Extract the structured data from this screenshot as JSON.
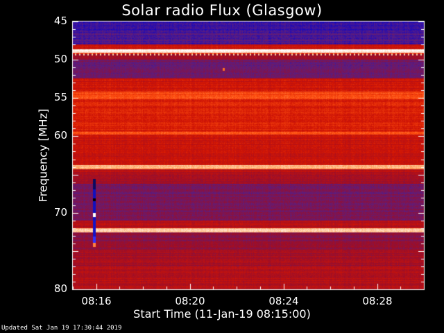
{
  "chart_data": {
    "type": "heatmap",
    "title": "Solar radio Flux (Glasgow)",
    "ylabel": "Frequency [MHz]",
    "xlabel": "Start Time (11-Jan-19 08:15:00)",
    "y_ticks": [
      "45",
      "50",
      "55",
      "60",
      "65",
      "70",
      "75",
      "80"
    ],
    "y_tick_labels": [
      "45",
      "50",
      "55",
      "60",
      "",
      "70",
      "",
      "80"
    ],
    "x_ticks": [
      "08:16",
      "08:20",
      "08:24",
      "08:28"
    ],
    "ylim": [
      45,
      80
    ],
    "xlim": [
      "08:15:00",
      "08:30:00"
    ],
    "colormap": [
      "#000000",
      "#0000d0",
      "#5a1e82",
      "#9a0e2a",
      "#d01404",
      "#ff5010",
      "#ffb070",
      "#ffffff"
    ],
    "bands": [
      {
        "f0": 45,
        "f1": 46.2,
        "level": 0.22
      },
      {
        "f0": 46.2,
        "f1": 48.0,
        "level": 0.26
      },
      {
        "f0": 48.0,
        "f1": 48.6,
        "level": 0.55
      },
      {
        "f0": 48.6,
        "f1": 49.1,
        "level": 0.97
      },
      {
        "f0": 49.1,
        "f1": 49.3,
        "level": 0.6
      },
      {
        "f0": 49.3,
        "f1": 50.0,
        "level": 0.45
      },
      {
        "f0": 50.0,
        "f1": 52.4,
        "level": 0.33
      },
      {
        "f0": 52.4,
        "f1": 54.2,
        "level": 0.56
      },
      {
        "f0": 54.2,
        "f1": 55.2,
        "level": 0.7
      },
      {
        "f0": 55.2,
        "f1": 59.4,
        "level": 0.6
      },
      {
        "f0": 59.4,
        "f1": 59.8,
        "level": 0.74
      },
      {
        "f0": 59.8,
        "f1": 63.8,
        "level": 0.55
      },
      {
        "f0": 63.8,
        "f1": 64.3,
        "level": 0.86
      },
      {
        "f0": 64.3,
        "f1": 65.0,
        "level": 0.5
      },
      {
        "f0": 65.0,
        "f1": 66.2,
        "level": 0.44
      },
      {
        "f0": 66.2,
        "f1": 68.6,
        "level": 0.34
      },
      {
        "f0": 68.6,
        "f1": 71.0,
        "level": 0.36
      },
      {
        "f0": 71.0,
        "f1": 72.0,
        "level": 0.5
      },
      {
        "f0": 72.0,
        "f1": 72.6,
        "level": 0.9
      },
      {
        "f0": 72.6,
        "f1": 74.8,
        "level": 0.4
      },
      {
        "f0": 74.8,
        "f1": 77.0,
        "level": 0.46
      },
      {
        "f0": 77.0,
        "f1": 80.0,
        "level": 0.5
      }
    ],
    "features": [
      {
        "time": "08:15:52",
        "f0": 65.6,
        "f1": 74.4,
        "label": "burst at 08:16"
      },
      {
        "time": "08:21:25",
        "f0": 51.1,
        "f1": 51.5,
        "label": "spike at 08:21"
      }
    ]
  },
  "footer": {
    "updated": "Updated Sat Jan 19 17:30:44 2019"
  }
}
